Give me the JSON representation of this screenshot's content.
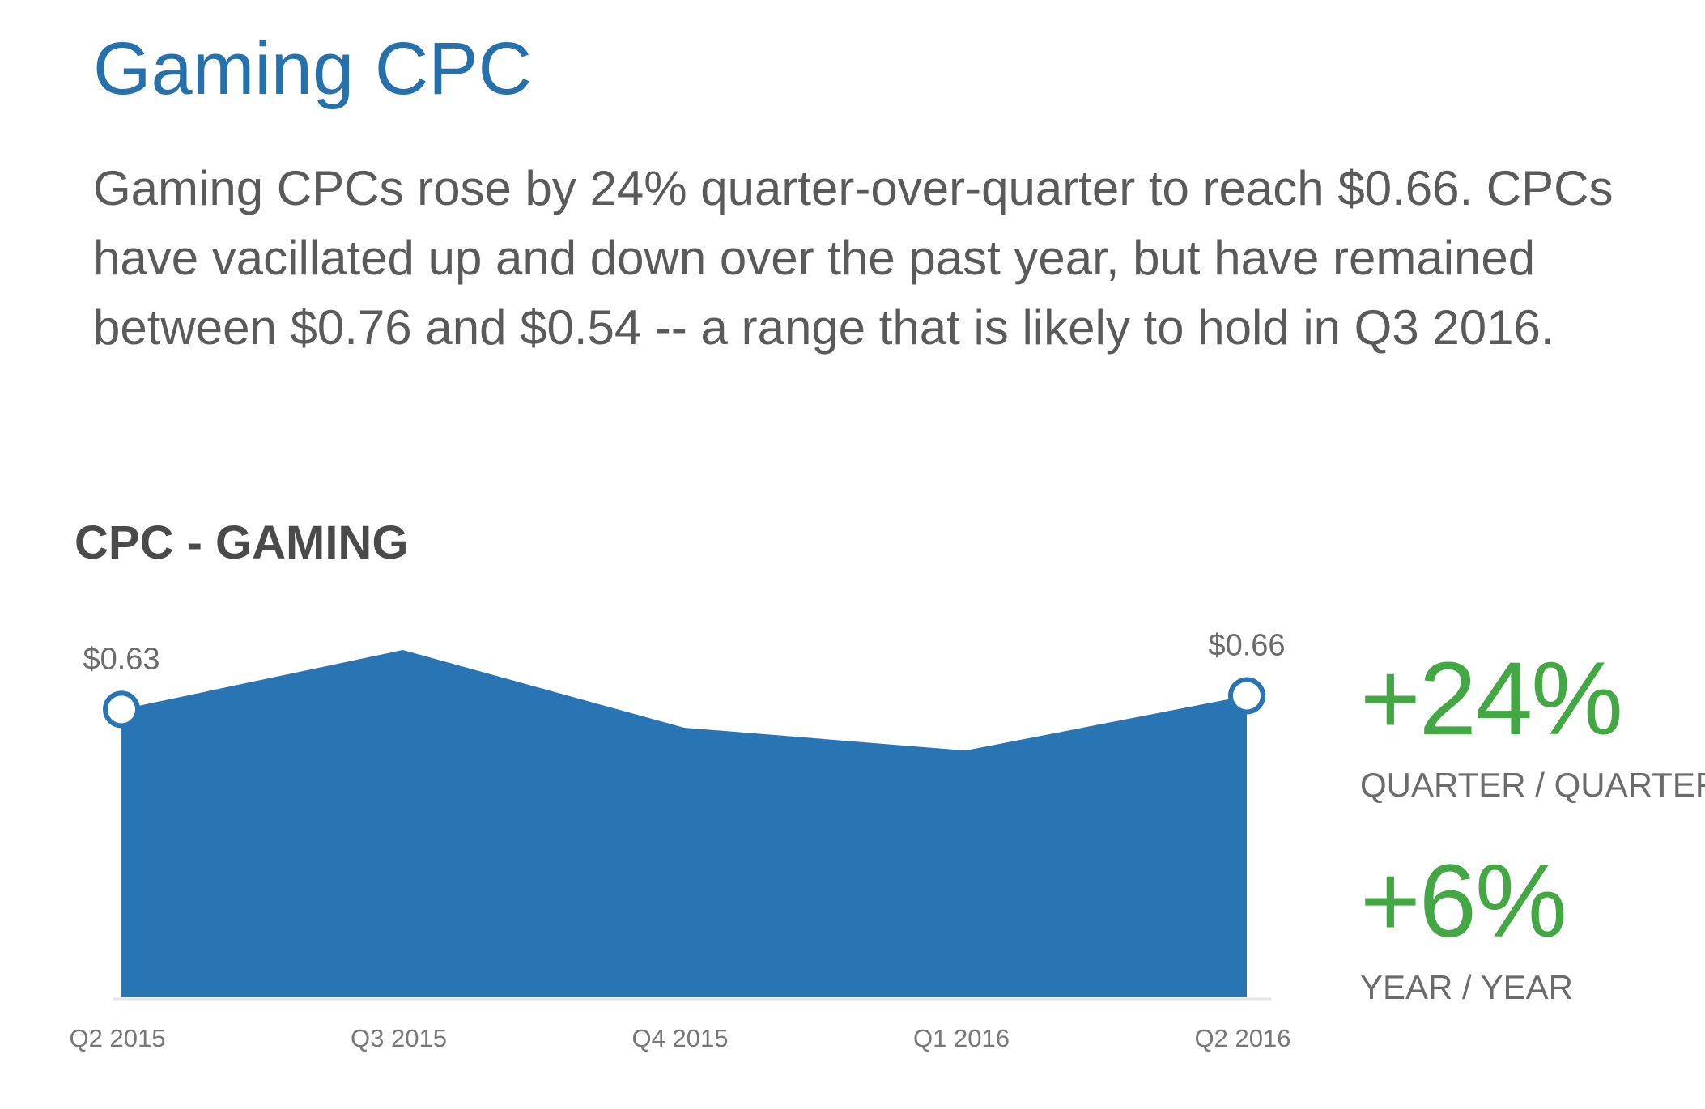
{
  "page": {
    "title": "Gaming CPC",
    "description": "Gaming CPCs rose by 24% quarter-over-quarter to reach $0.66. CPCs have vacillated up and down over the past year, but have remained between $0.76 and $0.54 -- a range that is likely to hold in Q3 2016."
  },
  "chart_data": {
    "type": "area",
    "title": "CPC - GAMING",
    "categories": [
      "Q2 2015",
      "Q3 2015",
      "Q4 2015",
      "Q1 2016",
      "Q2 2016"
    ],
    "series": [
      {
        "values": [
          0.63,
          0.76,
          0.59,
          0.54,
          0.66
        ]
      }
    ],
    "ylim": [
      0,
      0.8
    ],
    "grid": false,
    "annotations": [
      {
        "category": "Q2 2015",
        "label": "$0.63"
      },
      {
        "category": "Q2 2016",
        "label": "$0.66"
      }
    ],
    "color": "#2975b4"
  },
  "stats": [
    {
      "value": "+24%",
      "label": "QUARTER / QUARTER"
    },
    {
      "value": "+6%",
      "label": "YEAR / YEAR"
    }
  ]
}
